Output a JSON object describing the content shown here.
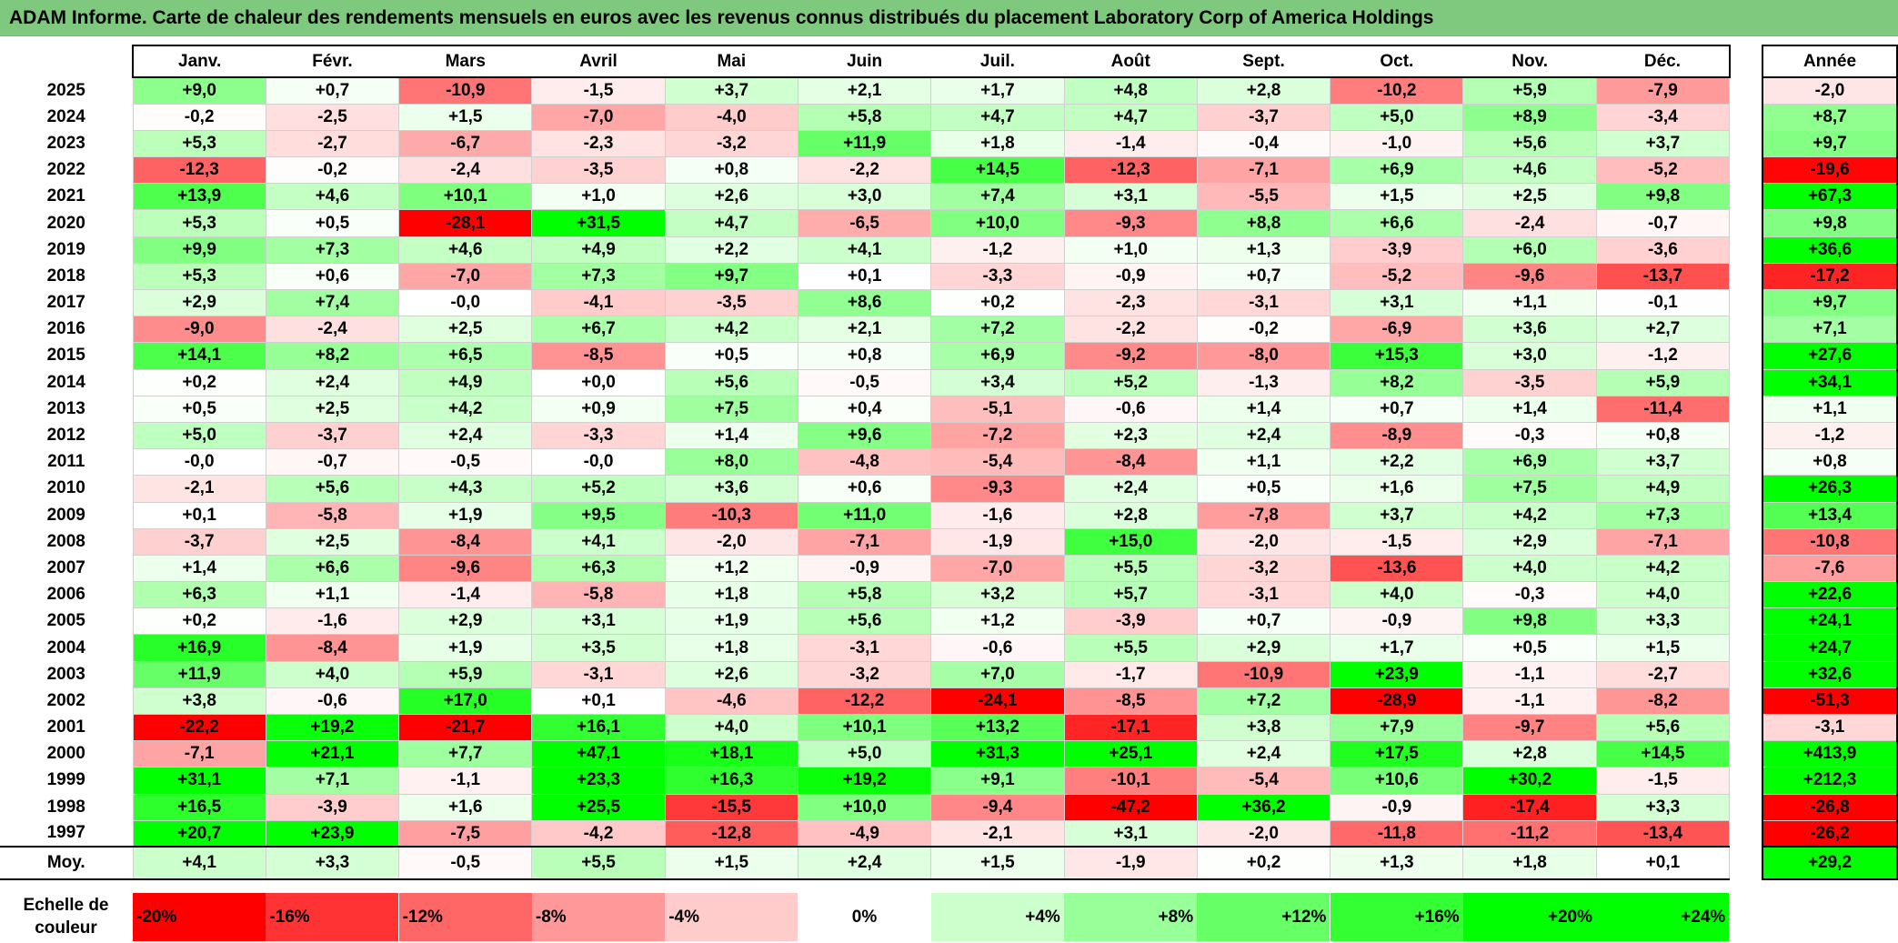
{
  "title": "ADAM Informe. Carte de chaleur des rendements mensuels en euros avec les revenus connus distribués du placement Laboratory Corp of America Holdings",
  "chart_data": {
    "type": "heatmap",
    "title": "ADAM Informe. Carte de chaleur des rendements mensuels en euros avec les revenus connus distribués du placement Laboratory Corp of America Holdings",
    "columns": [
      "Janv.",
      "Févr.",
      "Mars",
      "Avril",
      "Mai",
      "Juin",
      "Juil.",
      "Août",
      "Sept.",
      "Oct.",
      "Nov.",
      "Déc."
    ],
    "year_column_label": "Année",
    "average_row_label": "Moy.",
    "rows": [
      {
        "year": "2025",
        "values": [
          "+9,0",
          "+0,7",
          "-10,9",
          "-1,5",
          "+3,7",
          "+2,1",
          "+1,7",
          "+4,8",
          "+2,8",
          "-10,2",
          "+5,9",
          "-7,9"
        ],
        "annual": "-2,0"
      },
      {
        "year": "2024",
        "values": [
          "-0,2",
          "-2,5",
          "+1,5",
          "-7,0",
          "-4,0",
          "+5,8",
          "+4,7",
          "+4,7",
          "-3,7",
          "+5,0",
          "+8,9",
          "-3,4"
        ],
        "annual": "+8,7"
      },
      {
        "year": "2023",
        "values": [
          "+5,3",
          "-2,7",
          "-6,7",
          "-2,3",
          "-3,2",
          "+11,9",
          "+1,8",
          "-1,4",
          "-0,4",
          "-1,0",
          "+5,6",
          "+3,7"
        ],
        "annual": "+9,7"
      },
      {
        "year": "2022",
        "values": [
          "-12,3",
          "-0,2",
          "-2,4",
          "-3,5",
          "+0,8",
          "-2,2",
          "+14,5",
          "-12,3",
          "-7,1",
          "+6,9",
          "+4,6",
          "-5,2"
        ],
        "annual": "-19,6"
      },
      {
        "year": "2021",
        "values": [
          "+13,9",
          "+4,6",
          "+10,1",
          "+1,0",
          "+2,6",
          "+3,0",
          "+7,4",
          "+3,1",
          "-5,5",
          "+1,5",
          "+2,5",
          "+9,8"
        ],
        "annual": "+67,3"
      },
      {
        "year": "2020",
        "values": [
          "+5,3",
          "+0,5",
          "-28,1",
          "+31,5",
          "+4,7",
          "-6,5",
          "+10,0",
          "-9,3",
          "+8,8",
          "+6,6",
          "-2,4",
          "-0,7"
        ],
        "annual": "+9,8"
      },
      {
        "year": "2019",
        "values": [
          "+9,9",
          "+7,3",
          "+4,6",
          "+4,9",
          "+2,2",
          "+4,1",
          "-1,2",
          "+1,0",
          "+1,3",
          "-3,9",
          "+6,0",
          "-3,6"
        ],
        "annual": "+36,6"
      },
      {
        "year": "2018",
        "values": [
          "+5,3",
          "+0,6",
          "-7,0",
          "+7,3",
          "+9,7",
          "+0,1",
          "-3,3",
          "-0,9",
          "+0,7",
          "-5,2",
          "-9,6",
          "-13,7"
        ],
        "annual": "-17,2"
      },
      {
        "year": "2017",
        "values": [
          "+2,9",
          "+7,4",
          "-0,0",
          "-4,1",
          "-3,5",
          "+8,6",
          "+0,2",
          "-2,3",
          "-3,1",
          "+3,1",
          "+1,1",
          "-0,1"
        ],
        "annual": "+9,7"
      },
      {
        "year": "2016",
        "values": [
          "-9,0",
          "-2,4",
          "+2,5",
          "+6,7",
          "+4,2",
          "+2,1",
          "+7,2",
          "-2,2",
          "-0,2",
          "-6,9",
          "+3,6",
          "+2,7"
        ],
        "annual": "+7,1"
      },
      {
        "year": "2015",
        "values": [
          "+14,1",
          "+8,2",
          "+6,5",
          "-8,5",
          "+0,5",
          "+0,8",
          "+6,9",
          "-9,2",
          "-8,0",
          "+15,3",
          "+3,0",
          "-1,2"
        ],
        "annual": "+27,6"
      },
      {
        "year": "2014",
        "values": [
          "+0,2",
          "+2,4",
          "+4,9",
          "+0,0",
          "+5,6",
          "-0,5",
          "+3,4",
          "+5,2",
          "-1,3",
          "+8,2",
          "-3,5",
          "+5,9"
        ],
        "annual": "+34,1"
      },
      {
        "year": "2013",
        "values": [
          "+0,5",
          "+2,5",
          "+4,2",
          "+0,9",
          "+7,5",
          "+0,4",
          "-5,1",
          "-0,6",
          "+1,4",
          "+0,7",
          "+1,4",
          "-11,4"
        ],
        "annual": "+1,1"
      },
      {
        "year": "2012",
        "values": [
          "+5,0",
          "-3,7",
          "+2,4",
          "-3,3",
          "+1,4",
          "+9,6",
          "-7,2",
          "+2,3",
          "+2,4",
          "-8,9",
          "-0,3",
          "+0,8"
        ],
        "annual": "-1,2"
      },
      {
        "year": "2011",
        "values": [
          "-0,0",
          "-0,7",
          "-0,5",
          "-0,0",
          "+8,0",
          "-4,8",
          "-5,4",
          "-8,4",
          "+1,1",
          "+2,2",
          "+6,9",
          "+3,7"
        ],
        "annual": "+0,8"
      },
      {
        "year": "2010",
        "values": [
          "-2,1",
          "+5,6",
          "+4,3",
          "+5,2",
          "+3,6",
          "+0,6",
          "-9,3",
          "+2,4",
          "+0,5",
          "+1,6",
          "+7,5",
          "+4,9"
        ],
        "annual": "+26,3"
      },
      {
        "year": "2009",
        "values": [
          "+0,1",
          "-5,8",
          "+1,9",
          "+9,5",
          "-10,3",
          "+11,0",
          "-1,6",
          "+2,8",
          "-7,8",
          "+3,7",
          "+4,2",
          "+7,3"
        ],
        "annual": "+13,4"
      },
      {
        "year": "2008",
        "values": [
          "-3,7",
          "+2,5",
          "-8,4",
          "+4,1",
          "-2,0",
          "-7,1",
          "-1,9",
          "+15,0",
          "-2,0",
          "-1,5",
          "+2,9",
          "-7,1"
        ],
        "annual": "-10,8"
      },
      {
        "year": "2007",
        "values": [
          "+1,4",
          "+6,6",
          "-9,6",
          "+6,3",
          "+1,2",
          "-0,9",
          "-7,0",
          "+5,5",
          "-3,2",
          "-13,6",
          "+4,0",
          "+4,2"
        ],
        "annual": "-7,6"
      },
      {
        "year": "2006",
        "values": [
          "+6,3",
          "+1,1",
          "-1,4",
          "-5,8",
          "+1,8",
          "+5,8",
          "+3,2",
          "+5,7",
          "-3,1",
          "+4,0",
          "-0,3",
          "+4,0"
        ],
        "annual": "+22,6"
      },
      {
        "year": "2005",
        "values": [
          "+0,2",
          "-1,6",
          "+2,9",
          "+3,1",
          "+1,9",
          "+5,6",
          "+1,2",
          "-3,9",
          "+0,7",
          "-0,9",
          "+9,8",
          "+3,3"
        ],
        "annual": "+24,1"
      },
      {
        "year": "2004",
        "values": [
          "+16,9",
          "-8,4",
          "+1,9",
          "+3,5",
          "+1,8",
          "-3,1",
          "-0,6",
          "+5,5",
          "+2,9",
          "+1,7",
          "+0,5",
          "+1,5"
        ],
        "annual": "+24,7"
      },
      {
        "year": "2003",
        "values": [
          "+11,9",
          "+4,0",
          "+5,9",
          "-3,1",
          "+2,6",
          "-3,2",
          "+7,0",
          "-1,7",
          "-10,9",
          "+23,9",
          "-1,1",
          "-2,7"
        ],
        "annual": "+32,6"
      },
      {
        "year": "2002",
        "values": [
          "+3,8",
          "-0,6",
          "+17,0",
          "+0,1",
          "-4,6",
          "-12,2",
          "-24,1",
          "-8,5",
          "+7,2",
          "-28,9",
          "-1,1",
          "-8,2"
        ],
        "annual": "-51,3"
      },
      {
        "year": "2001",
        "values": [
          "-22,2",
          "+19,2",
          "-21,7",
          "+16,1",
          "+4,0",
          "+10,1",
          "+13,2",
          "-17,1",
          "+3,8",
          "+7,9",
          "-9,7",
          "+5,6"
        ],
        "annual": "-3,1"
      },
      {
        "year": "2000",
        "values": [
          "-7,1",
          "+21,1",
          "+7,7",
          "+47,1",
          "+18,1",
          "+5,0",
          "+31,3",
          "+25,1",
          "+2,4",
          "+17,5",
          "+2,8",
          "+14,5"
        ],
        "annual": "+413,9"
      },
      {
        "year": "1999",
        "values": [
          "+31,1",
          "+7,1",
          "-1,1",
          "+23,3",
          "+16,3",
          "+19,2",
          "+9,1",
          "-10,1",
          "-5,4",
          "+10,6",
          "+30,2",
          "-1,5"
        ],
        "annual": "+212,3"
      },
      {
        "year": "1998",
        "values": [
          "+16,5",
          "-3,9",
          "+1,6",
          "+25,5",
          "-15,5",
          "+10,0",
          "-9,4",
          "-47,2",
          "+36,2",
          "-0,9",
          "-17,4",
          "+3,3"
        ],
        "annual": "-26,8"
      },
      {
        "year": "1997",
        "values": [
          "+20,7",
          "+23,9",
          "-7,5",
          "-4,2",
          "-12,8",
          "-4,9",
          "-2,1",
          "+3,1",
          "-2,0",
          "-11,8",
          "-11,2",
          "-13,4"
        ],
        "annual": "-26,2"
      }
    ],
    "average": {
      "values": [
        "+4,1",
        "+3,3",
        "-0,5",
        "+5,5",
        "+1,5",
        "+2,4",
        "+1,5",
        "-1,9",
        "+0,2",
        "+1,3",
        "+1,8",
        "+0,1"
      ],
      "annual": "+29,2"
    },
    "color_scale": {
      "label": "Echelle de couleur",
      "stops": [
        "-20%",
        "-16%",
        "-12%",
        "-8%",
        "-4%",
        "0%",
        "+4%",
        "+8%",
        "+12%",
        "+16%",
        "+20%",
        "+24%"
      ],
      "colors": [
        "#ff0000",
        "#ff3333",
        "#ff6666",
        "#ff9999",
        "#ffcccc",
        "#ffffff",
        "#ccffcc",
        "#99ff99",
        "#66ff66",
        "#33ff33",
        "#00ff00",
        "#00ff00"
      ]
    }
  }
}
